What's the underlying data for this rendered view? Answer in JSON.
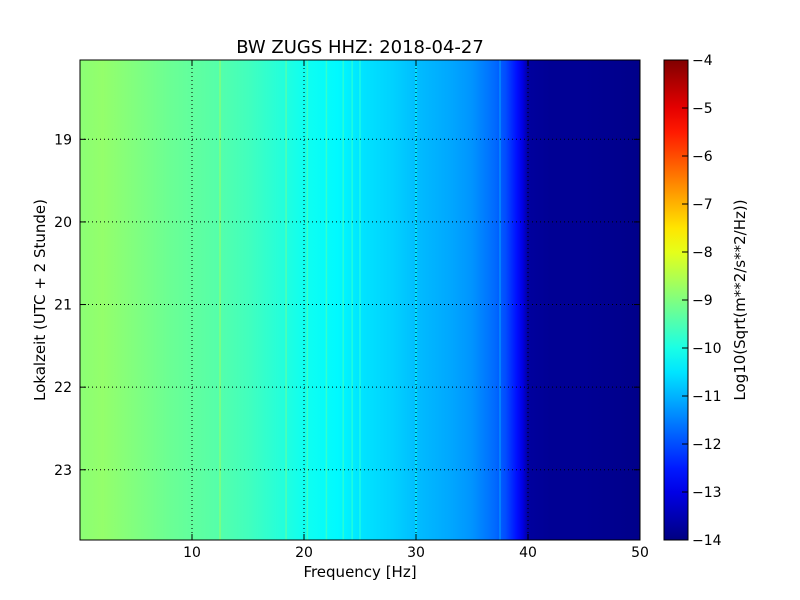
{
  "chart_data": {
    "type": "heatmap",
    "title": "BW ZUGS HHZ: 2018-04-27",
    "xlabel": "Frequency [Hz]",
    "ylabel": "Lokalzeit (UTC + 2 Stunde)",
    "xlim": [
      0,
      50
    ],
    "ylim": [
      18.04,
      23.85
    ],
    "y_inverted": true,
    "x_ticks": [
      10,
      20,
      30,
      40,
      50
    ],
    "y_ticks": [
      19,
      20,
      21,
      22,
      23
    ],
    "grid": true,
    "colormap": "jet",
    "colorbar": {
      "label": "Log10(Sqrt(m**2/s**2/Hz))",
      "range": [
        -14,
        -4
      ],
      "ticks": [
        -4,
        -5,
        -6,
        -7,
        -8,
        -9,
        -10,
        -11,
        -12,
        -13,
        -14
      ]
    },
    "spectrum_profile": {
      "frequency_hz": [
        0,
        2,
        5,
        8,
        10,
        12,
        15,
        18,
        20,
        23,
        25,
        28,
        30,
        33,
        35,
        37,
        38,
        39,
        39.5,
        40,
        42,
        45,
        50
      ],
      "log10_amplitude": [
        -8.9,
        -8.8,
        -9.0,
        -9.2,
        -9.3,
        -9.4,
        -9.6,
        -9.9,
        -10.1,
        -10.3,
        -10.5,
        -10.7,
        -10.9,
        -11.1,
        -11.3,
        -11.7,
        -12.0,
        -12.6,
        -13.0,
        -13.7,
        -13.8,
        -13.8,
        -13.9
      ]
    },
    "spectral_lines_hz": [
      12.5,
      18.4,
      20.3,
      22.0,
      23.5,
      24.3,
      25.0,
      30.0,
      37.5
    ]
  }
}
